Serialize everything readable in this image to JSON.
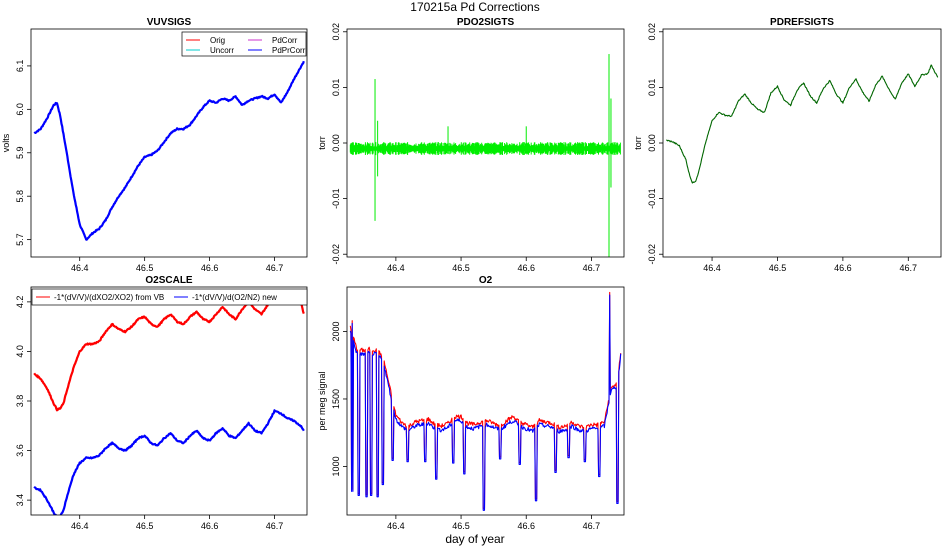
{
  "figure": {
    "title": "170215a   Pd Corrections",
    "xlabel": "day of year"
  },
  "chart_data": [
    {
      "id": "vuvsigs",
      "type": "line",
      "title": "VUVSIGS",
      "ylabel": "volts",
      "xlim": [
        46.325,
        46.75
      ],
      "ylim": [
        5.66,
        6.185
      ],
      "xticks": [
        46.4,
        46.5,
        46.6,
        46.7
      ],
      "yticks": [
        5.7,
        5.8,
        5.9,
        6.0,
        6.1
      ],
      "ytick_labels": [
        "5.7",
        "5.8",
        "5.9",
        "6.0",
        "6.1"
      ],
      "legend_position": "top-right",
      "legend_entries": [
        {
          "label": "Orig",
          "color": "#ff0000"
        },
        {
          "label": "PdCorr",
          "color": "#cc33cc"
        },
        {
          "label": "Uncorr",
          "color": "#00cccc"
        },
        {
          "label": "PdPrCorr",
          "color": "#0000ff"
        }
      ],
      "series": [
        {
          "name": "PdPrCorr",
          "color": "#0000ff",
          "x": [
            46.33,
            46.34,
            46.35,
            46.36,
            46.365,
            46.37,
            46.38,
            46.39,
            46.4,
            46.41,
            46.42,
            46.43,
            46.44,
            46.45,
            46.46,
            46.47,
            46.48,
            46.49,
            46.5,
            46.51,
            46.52,
            46.53,
            46.54,
            46.55,
            46.56,
            46.57,
            46.58,
            46.59,
            46.6,
            46.61,
            46.62,
            46.63,
            46.64,
            46.65,
            46.66,
            46.67,
            46.68,
            46.69,
            46.7,
            46.71,
            46.72,
            46.73,
            46.745
          ],
          "y": [
            5.945,
            5.955,
            5.98,
            6.01,
            6.015,
            5.985,
            5.9,
            5.81,
            5.735,
            5.7,
            5.715,
            5.725,
            5.745,
            5.775,
            5.8,
            5.82,
            5.845,
            5.87,
            5.89,
            5.895,
            5.905,
            5.925,
            5.945,
            5.955,
            5.955,
            5.965,
            5.985,
            6.005,
            6.02,
            6.015,
            6.025,
            6.02,
            6.03,
            6.01,
            6.02,
            6.025,
            6.03,
            6.025,
            6.035,
            6.015,
            6.04,
            6.07,
            6.11
          ]
        }
      ]
    },
    {
      "id": "pdo2sigts",
      "type": "line",
      "title": "PDO2SIGTS",
      "ylabel": "torr",
      "xlim": [
        46.325,
        46.75
      ],
      "ylim": [
        -0.0205,
        0.0205
      ],
      "xticks": [
        46.4,
        46.5,
        46.6,
        46.7
      ],
      "yticks": [
        -0.02,
        -0.01,
        0.0,
        0.01,
        0.02
      ],
      "ytick_labels": [
        "-0.02",
        "-0.01",
        "0.00",
        "0.01",
        "0.02"
      ],
      "series": [
        {
          "name": "",
          "color": "#00ee00",
          "baseline": -0.001,
          "noise_amplitude": 0.0009,
          "spikes": [
            {
              "x": 46.368,
              "y": 0.0115
            },
            {
              "x": 46.368,
              "y": -0.014
            },
            {
              "x": 46.372,
              "y": 0.004
            },
            {
              "x": 46.372,
              "y": -0.006
            },
            {
              "x": 46.48,
              "y": 0.003
            },
            {
              "x": 46.6,
              "y": 0.003
            },
            {
              "x": 46.727,
              "y": 0.016
            },
            {
              "x": 46.727,
              "y": -0.021
            },
            {
              "x": 46.73,
              "y": 0.008
            },
            {
              "x": 46.73,
              "y": -0.008
            }
          ]
        }
      ]
    },
    {
      "id": "pdrefsigts",
      "type": "line",
      "title": "PDREFSIGTS",
      "ylabel": "torr",
      "xlim": [
        46.325,
        46.75
      ],
      "ylim": [
        -0.0205,
        0.0205
      ],
      "xticks": [
        46.4,
        46.5,
        46.6,
        46.7
      ],
      "yticks": [
        -0.02,
        -0.01,
        0.0,
        0.01,
        0.02
      ],
      "ytick_labels": [
        "-0.02",
        "-0.01",
        "0.00",
        "0.01",
        "0.02"
      ],
      "series": [
        {
          "name": "",
          "color": "#006600",
          "x": [
            46.33,
            46.34,
            46.35,
            46.36,
            46.365,
            46.37,
            46.375,
            46.38,
            46.39,
            46.4,
            46.41,
            46.42,
            46.43,
            46.44,
            46.45,
            46.46,
            46.47,
            46.48,
            46.49,
            46.5,
            46.51,
            46.52,
            46.53,
            46.54,
            46.55,
            46.56,
            46.57,
            46.58,
            46.59,
            46.6,
            46.61,
            46.62,
            46.63,
            46.64,
            46.65,
            46.66,
            46.67,
            46.68,
            46.69,
            46.7,
            46.71,
            46.72,
            46.73,
            46.735,
            46.745
          ],
          "y": [
            0.0005,
            0.0002,
            -0.0005,
            -0.003,
            -0.0055,
            -0.0072,
            -0.0068,
            -0.005,
            0.0,
            0.004,
            0.0055,
            0.005,
            0.0048,
            0.0075,
            0.0088,
            0.0072,
            0.006,
            0.0055,
            0.009,
            0.0102,
            0.0078,
            0.0068,
            0.0095,
            0.0108,
            0.0085,
            0.0072,
            0.0098,
            0.0112,
            0.0088,
            0.0072,
            0.01,
            0.0115,
            0.0092,
            0.0075,
            0.0104,
            0.012,
            0.0098,
            0.0078,
            0.0108,
            0.0124,
            0.0102,
            0.0122,
            0.0125,
            0.014,
            0.0118
          ]
        }
      ]
    },
    {
      "id": "o2scale",
      "type": "line",
      "title": "O2SCALE",
      "ylabel": "",
      "xlim": [
        46.325,
        46.75
      ],
      "ylim": [
        3.34,
        4.26
      ],
      "xticks": [
        46.4,
        46.5,
        46.6,
        46.7
      ],
      "yticks": [
        3.4,
        3.6,
        3.8,
        4.0,
        4.2
      ],
      "ytick_labels": [
        "3.4",
        "3.6",
        "3.8",
        "4.0",
        "4.2"
      ],
      "legend_position": "top",
      "legend_entries": [
        {
          "label": "-1*(dV/V)/(dXO2/XO2) from VB",
          "color": "#ff0000"
        },
        {
          "label": "-1*(dV/V)/d(O2/N2) new",
          "color": "#0000ff"
        }
      ],
      "series": [
        {
          "name": "-1*(dV/V)/(dXO2/XO2) from VB",
          "color": "#ff0000",
          "x": [
            46.33,
            46.34,
            46.35,
            46.36,
            46.365,
            46.37,
            46.375,
            46.38,
            46.39,
            46.4,
            46.41,
            46.42,
            46.43,
            46.44,
            46.45,
            46.46,
            46.47,
            46.48,
            46.49,
            46.5,
            46.51,
            46.52,
            46.53,
            46.54,
            46.55,
            46.56,
            46.57,
            46.58,
            46.59,
            46.6,
            46.61,
            46.62,
            46.63,
            46.64,
            46.65,
            46.66,
            46.67,
            46.68,
            46.69,
            46.7,
            46.71,
            46.72,
            46.73,
            46.74,
            46.745
          ],
          "y": [
            3.91,
            3.89,
            3.85,
            3.79,
            3.765,
            3.77,
            3.79,
            3.84,
            3.93,
            4.0,
            4.03,
            4.03,
            4.04,
            4.08,
            4.11,
            4.09,
            4.08,
            4.1,
            4.13,
            4.14,
            4.11,
            4.1,
            4.13,
            4.15,
            4.12,
            4.11,
            4.14,
            4.16,
            4.13,
            4.12,
            4.15,
            4.18,
            4.15,
            4.13,
            4.17,
            4.2,
            4.17,
            4.15,
            4.19,
            4.22,
            4.21,
            4.24,
            4.23,
            4.21,
            4.15
          ]
        },
        {
          "name": "-1*(dV/V)/d(O2/N2) new",
          "color": "#0000ff",
          "x": [
            46.33,
            46.34,
            46.35,
            46.36,
            46.365,
            46.37,
            46.375,
            46.38,
            46.39,
            46.4,
            46.41,
            46.42,
            46.43,
            46.44,
            46.45,
            46.46,
            46.47,
            46.48,
            46.49,
            46.5,
            46.51,
            46.52,
            46.53,
            46.54,
            46.55,
            46.56,
            46.57,
            46.58,
            46.59,
            46.6,
            46.61,
            46.62,
            46.63,
            46.64,
            46.65,
            46.66,
            46.67,
            46.68,
            46.69,
            46.7,
            46.71,
            46.72,
            46.73,
            46.74,
            46.745
          ],
          "y": [
            3.45,
            3.44,
            3.4,
            3.35,
            3.33,
            3.335,
            3.36,
            3.41,
            3.5,
            3.55,
            3.57,
            3.57,
            3.58,
            3.61,
            3.63,
            3.61,
            3.6,
            3.62,
            3.65,
            3.66,
            3.63,
            3.62,
            3.65,
            3.67,
            3.64,
            3.63,
            3.66,
            3.68,
            3.65,
            3.64,
            3.67,
            3.69,
            3.66,
            3.65,
            3.68,
            3.71,
            3.68,
            3.67,
            3.71,
            3.76,
            3.75,
            3.73,
            3.72,
            3.7,
            3.68
          ]
        }
      ]
    },
    {
      "id": "o2",
      "type": "line",
      "title": "O2",
      "ylabel": "per meg signal",
      "xlim": [
        46.325,
        46.75
      ],
      "ylim": [
        640,
        2330
      ],
      "xticks": [
        46.4,
        46.5,
        46.6,
        46.7
      ],
      "yticks": [
        1000,
        1500,
        2000
      ],
      "ytick_labels": [
        "1000",
        "1500",
        "2000"
      ],
      "series": [
        {
          "name": "",
          "color": "#ff0000",
          "x": [
            46.33,
            46.34,
            46.35,
            46.36,
            46.37,
            46.38,
            46.39,
            46.4,
            46.41,
            46.42,
            46.43,
            46.44,
            46.45,
            46.46,
            46.47,
            46.48,
            46.49,
            46.5,
            46.51,
            46.52,
            46.53,
            46.54,
            46.55,
            46.56,
            46.57,
            46.58,
            46.59,
            46.6,
            46.61,
            46.62,
            46.63,
            46.64,
            46.65,
            46.66,
            46.67,
            46.68,
            46.69,
            46.7,
            46.71,
            46.72,
            46.73,
            46.74,
            46.745
          ],
          "y": [
            2040,
            1870,
            1860,
            1870,
            1860,
            1820,
            1600,
            1380,
            1320,
            1300,
            1330,
            1340,
            1350,
            1310,
            1300,
            1320,
            1370,
            1370,
            1320,
            1310,
            1330,
            1340,
            1320,
            1300,
            1340,
            1370,
            1330,
            1310,
            1290,
            1340,
            1330,
            1320,
            1290,
            1300,
            1330,
            1300,
            1290,
            1310,
            1310,
            1330,
            1580,
            1620,
            1850
          ]
        },
        {
          "name": "",
          "color": "#0000ff",
          "x": [
            46.33,
            46.34,
            46.35,
            46.36,
            46.37,
            46.38,
            46.39,
            46.4,
            46.41,
            46.42,
            46.43,
            46.44,
            46.45,
            46.46,
            46.47,
            46.48,
            46.49,
            46.5,
            46.51,
            46.52,
            46.53,
            46.54,
            46.55,
            46.56,
            46.57,
            46.58,
            46.59,
            46.6,
            46.61,
            46.62,
            46.63,
            46.64,
            46.65,
            46.66,
            46.67,
            46.68,
            46.69,
            46.7,
            46.71,
            46.72,
            46.73,
            46.74,
            46.745
          ],
          "y": [
            2010,
            1840,
            1830,
            1840,
            1830,
            1790,
            1570,
            1350,
            1290,
            1270,
            1300,
            1310,
            1320,
            1280,
            1270,
            1290,
            1340,
            1340,
            1290,
            1280,
            1300,
            1310,
            1290,
            1270,
            1310,
            1340,
            1300,
            1280,
            1260,
            1310,
            1300,
            1290,
            1260,
            1270,
            1300,
            1270,
            1260,
            1280,
            1280,
            1300,
            1560,
            1600,
            1830
          ]
        }
      ],
      "dips": [
        {
          "x": 46.333,
          "y": 830
        },
        {
          "x": 46.343,
          "y": 800
        },
        {
          "x": 46.355,
          "y": 790
        },
        {
          "x": 46.362,
          "y": 800
        },
        {
          "x": 46.372,
          "y": 790
        },
        {
          "x": 46.38,
          "y": 880
        },
        {
          "x": 46.395,
          "y": 1060
        },
        {
          "x": 46.418,
          "y": 1050
        },
        {
          "x": 46.445,
          "y": 1050
        },
        {
          "x": 46.462,
          "y": 920
        },
        {
          "x": 46.488,
          "y": 1040
        },
        {
          "x": 46.505,
          "y": 960
        },
        {
          "x": 46.535,
          "y": 690
        },
        {
          "x": 46.56,
          "y": 1070
        },
        {
          "x": 46.59,
          "y": 1030
        },
        {
          "x": 46.615,
          "y": 760
        },
        {
          "x": 46.645,
          "y": 970
        },
        {
          "x": 46.665,
          "y": 1080
        },
        {
          "x": 46.69,
          "y": 1050
        },
        {
          "x": 46.712,
          "y": 940
        },
        {
          "x": 46.74,
          "y": 740
        }
      ],
      "peaks": [
        {
          "x": 46.728,
          "y": 2290
        },
        {
          "x": 46.333,
          "y": 2080
        }
      ]
    }
  ]
}
